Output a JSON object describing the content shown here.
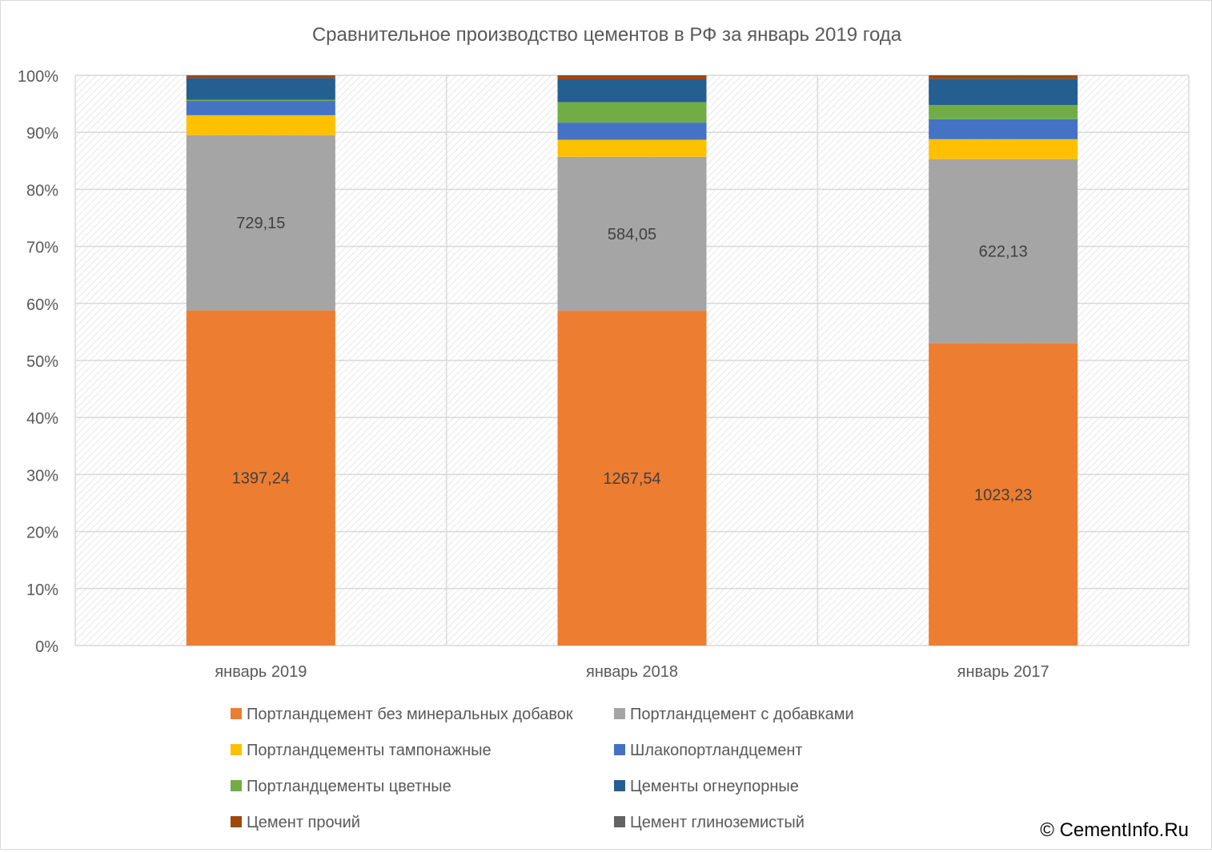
{
  "chart_data": {
    "type": "bar",
    "stacked": true,
    "normalized_percent": true,
    "title": "Сравнительное производство цементов в РФ за январь 2019 года",
    "categories": [
      "январь 2019",
      "январь 2018",
      "январь 2017"
    ],
    "y_ticks": [
      "0%",
      "10%",
      "20%",
      "30%",
      "40%",
      "50%",
      "60%",
      "70%",
      "80%",
      "90%",
      "100%"
    ],
    "ylim": [
      0,
      100
    ],
    "grid": true,
    "legend_position": "bottom",
    "series": [
      {
        "name": "Портландцемент без минеральных добавок",
        "color": "#ED7D31",
        "values": [
          58.8,
          58.7,
          53.0
        ],
        "labels": [
          "1397,24",
          "1267,54",
          "1023,23"
        ]
      },
      {
        "name": "Портландцемент с добавками",
        "color": "#A5A5A5",
        "values": [
          30.7,
          27.0,
          32.3
        ],
        "labels": [
          "729,15",
          "584,05",
          "622,13"
        ]
      },
      {
        "name": "Портландцементы тампонажные",
        "color": "#FFC000",
        "values": [
          3.5,
          3.0,
          3.5
        ],
        "labels": [
          "",
          "",
          ""
        ]
      },
      {
        "name": "Шлакопортландцемент",
        "color": "#4472C4",
        "values": [
          2.5,
          3.0,
          3.5
        ],
        "labels": [
          "",
          "",
          ""
        ]
      },
      {
        "name": "Портландцементы цветные",
        "color": "#70AD47",
        "values": [
          0.2,
          3.6,
          2.5
        ],
        "labels": [
          "",
          "",
          ""
        ]
      },
      {
        "name": "Цементы огнеупорные",
        "color": "#255E91",
        "values": [
          3.8,
          4.0,
          4.6
        ],
        "labels": [
          "",
          "",
          ""
        ]
      },
      {
        "name": "Цемент прочий",
        "color": "#9E480E",
        "values": [
          0.5,
          0.7,
          0.6
        ],
        "labels": [
          "",
          "",
          ""
        ]
      },
      {
        "name": "Цемент глиноземистый",
        "color": "#636363",
        "values": [
          0.0,
          0.0,
          0.0
        ],
        "labels": [
          "",
          "",
          ""
        ]
      }
    ]
  },
  "watermark": "© CementInfo.Ru"
}
